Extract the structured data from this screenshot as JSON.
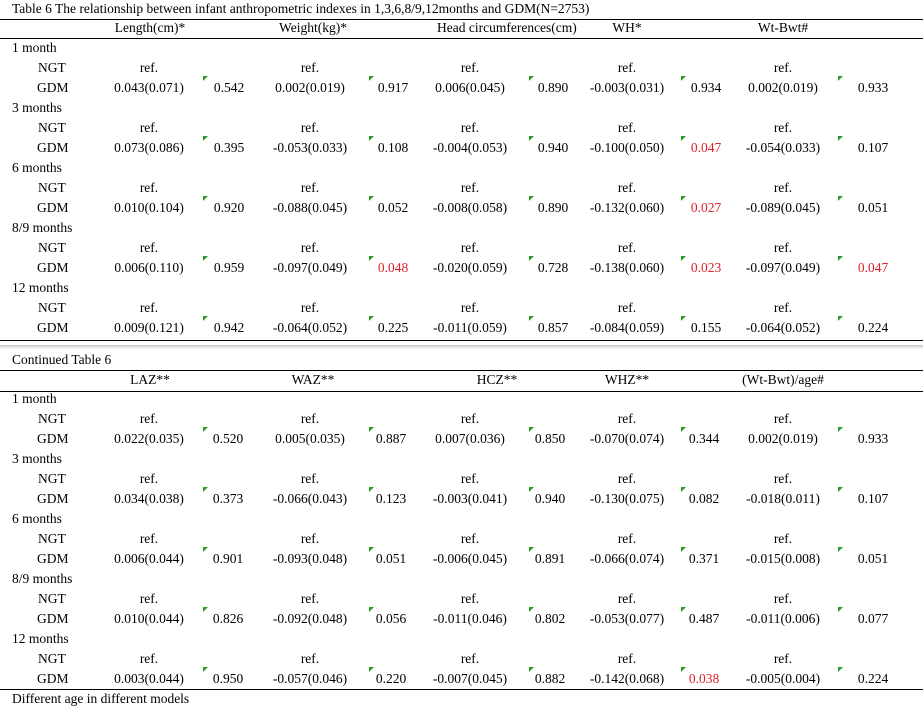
{
  "table1": {
    "caption": "Table 6 The relationship between infant anthropometric indexes in 1,3,6,8/9,12months and  GDM(N=2753)",
    "headers": [
      "Length(cm)*",
      "Weight(kg)*",
      "Head circumferences(cm)",
      "WH*",
      "Wt-Bwt#"
    ],
    "groups": [
      {
        "label": "1 month",
        "ngt": "NGT",
        "gdm": "GDM",
        "ref": [
          "ref.",
          "ref.",
          "ref.",
          "ref.",
          "ref."
        ],
        "coef": [
          "0.043(0.071)",
          "0.002(0.019)",
          "0.006(0.045)",
          "-0.003(0.031)",
          "0.002(0.019)"
        ],
        "p": [
          "0.542",
          "0.917",
          "0.890",
          "0.934",
          "0.933"
        ],
        "sig": [
          false,
          false,
          false,
          false,
          false
        ]
      },
      {
        "label": "3 months",
        "ngt": "NGT",
        "gdm": "GDM",
        "ref": [
          "ref.",
          "ref.",
          "ref.",
          "ref.",
          "ref."
        ],
        "coef": [
          "0.073(0.086)",
          "-0.053(0.033)",
          "-0.004(0.053)",
          "-0.100(0.050)",
          "-0.054(0.033)"
        ],
        "p": [
          "0.395",
          "0.108",
          "0.940",
          "0.047",
          "0.107"
        ],
        "sig": [
          false,
          false,
          false,
          true,
          false
        ]
      },
      {
        "label": "6 months",
        "ngt": "NGT",
        "gdm": "GDM",
        "ref": [
          "ref.",
          "ref.",
          "ref.",
          "ref.",
          "ref."
        ],
        "coef": [
          "0.010(0.104)",
          "-0.088(0.045)",
          "-0.008(0.058)",
          "-0.132(0.060)",
          "-0.089(0.045)"
        ],
        "p": [
          "0.920",
          "0.052",
          "0.890",
          "0.027",
          "0.051"
        ],
        "sig": [
          false,
          false,
          false,
          true,
          false
        ]
      },
      {
        "label": "8/9 months",
        "ngt": "NGT",
        "gdm": "GDM",
        "ref": [
          "ref.",
          "ref.",
          "ref.",
          "ref.",
          "ref."
        ],
        "coef": [
          "0.006(0.110)",
          "-0.097(0.049)",
          "-0.020(0.059)",
          "-0.138(0.060)",
          "-0.097(0.049)"
        ],
        "p": [
          "0.959",
          "0.048",
          "0.728",
          "0.023",
          "0.047"
        ],
        "sig": [
          false,
          true,
          false,
          true,
          true
        ]
      },
      {
        "label": "12 months",
        "ngt": "NGT",
        "gdm": "GDM",
        "ref": [
          "ref.",
          "ref.",
          "ref.",
          "ref.",
          "ref."
        ],
        "coef": [
          "0.009(0.121)",
          "-0.064(0.052)",
          "-0.011(0.059)",
          "-0.084(0.059)",
          "-0.064(0.052)"
        ],
        "p": [
          "0.942",
          "0.225",
          "0.857",
          "0.155",
          "0.224"
        ],
        "sig": [
          false,
          false,
          false,
          false,
          false
        ]
      }
    ]
  },
  "table2": {
    "caption": "Continued  Table 6",
    "headers": [
      "LAZ**",
      "WAZ**",
      "HCZ**",
      "WHZ**",
      "(Wt-Bwt)/age#"
    ],
    "groups": [
      {
        "label": "1 month",
        "ngt": "NGT",
        "gdm": "GDM",
        "ref": [
          "ref.",
          "ref.",
          "ref.",
          "ref.",
          "ref."
        ],
        "coef": [
          "0.022(0.035)",
          "0.005(0.035)",
          "0.007(0.036)",
          "-0.070(0.074)",
          "0.002(0.019)"
        ],
        "p": [
          "0.520",
          "0.887",
          "0.850",
          "0.344",
          "0.933"
        ],
        "sig": [
          false,
          false,
          false,
          false,
          false
        ]
      },
      {
        "label": "3 months",
        "ngt": "NGT",
        "gdm": "GDM",
        "ref": [
          "ref.",
          "ref.",
          "ref.",
          "ref.",
          "ref."
        ],
        "coef": [
          "0.034(0.038)",
          "-0.066(0.043)",
          "-0.003(0.041)",
          "-0.130(0.075)",
          "-0.018(0.011)"
        ],
        "p": [
          "0.373",
          "0.123",
          "0.940",
          "0.082",
          "0.107"
        ],
        "sig": [
          false,
          false,
          false,
          false,
          false
        ]
      },
      {
        "label": "6 months",
        "ngt": "NGT",
        "gdm": "GDM",
        "ref": [
          "ref.",
          "ref.",
          "ref.",
          "ref.",
          "ref."
        ],
        "coef": [
          "0.006(0.044)",
          "-0.093(0.048)",
          "-0.006(0.045)",
          "-0.066(0.074)",
          "-0.015(0.008)"
        ],
        "p": [
          "0.901",
          "0.051",
          "0.891",
          "0.371",
          "0.051"
        ],
        "sig": [
          false,
          false,
          false,
          false,
          false
        ]
      },
      {
        "label": "8/9 months",
        "ngt": "NGT",
        "gdm": "GDM",
        "ref": [
          "ref.",
          "ref.",
          "ref.",
          "ref.",
          "ref."
        ],
        "coef": [
          "0.010(0.044)",
          "-0.092(0.048)",
          "-0.011(0.046)",
          "-0.053(0.077)",
          "-0.011(0.006)"
        ],
        "p": [
          "0.826",
          "0.056",
          "0.802",
          "0.487",
          "0.077"
        ],
        "sig": [
          false,
          false,
          false,
          false,
          false
        ]
      },
      {
        "label": "12 months",
        "ngt": "NGT",
        "gdm": "GDM",
        "ref": [
          "ref.",
          "ref.",
          "ref.",
          "ref.",
          "ref."
        ],
        "coef": [
          "0.003(0.044)",
          "-0.057(0.046)",
          "-0.007(0.045)",
          "-0.142(0.068)",
          "-0.005(0.004)"
        ],
        "p": [
          "0.950",
          "0.220",
          "0.882",
          "0.038",
          "0.224"
        ],
        "sig": [
          false,
          false,
          false,
          true,
          false
        ]
      }
    ],
    "footnote": "Different age in different models"
  },
  "colors": {
    "significant": "#e0202a",
    "cell_marker": "#2e9a2e"
  }
}
